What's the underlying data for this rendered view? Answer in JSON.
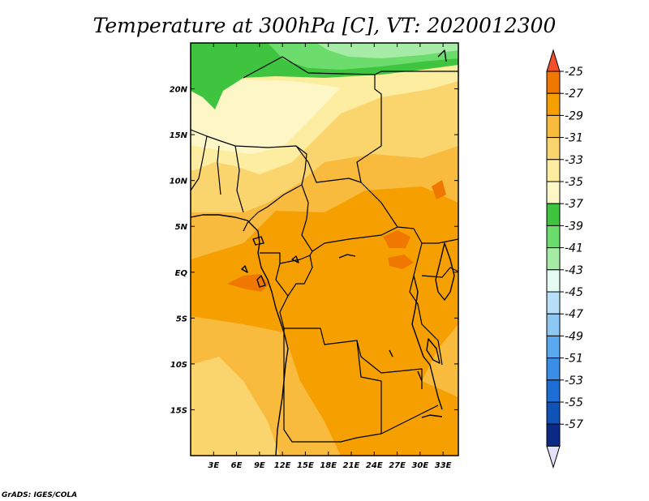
{
  "chart_data": {
    "type": "heatmap",
    "title": "Temperature at 300hPa [C], VT: 2020012300",
    "field": "Temperature at 300hPa",
    "units": "C",
    "valid_time": "2020012300",
    "x_ticks": [
      "3E",
      "6E",
      "9E",
      "12E",
      "15E",
      "18E",
      "21E",
      "24E",
      "27E",
      "30E",
      "33E"
    ],
    "x_tick_values": [
      3,
      6,
      9,
      12,
      15,
      18,
      21,
      24,
      27,
      30,
      33
    ],
    "y_ticks": [
      "20N",
      "15N",
      "10N",
      "5N",
      "EQ",
      "5S",
      "10S",
      "15S"
    ],
    "y_tick_values": [
      20,
      15,
      10,
      5,
      0,
      -5,
      -10,
      -15
    ],
    "xlim": [
      0,
      35
    ],
    "ylim": [
      -20,
      25
    ],
    "colorbar": {
      "levels": [
        -25,
        -27,
        -29,
        -31,
        -33,
        -35,
        -37,
        -39,
        -41,
        -43,
        -45,
        -47,
        -49,
        -51,
        -53,
        -55,
        -57
      ],
      "level_labels": [
        "-25",
        "-27",
        "-29",
        "-31",
        "-33",
        "-35",
        "-37",
        "-39",
        "-41",
        "-43",
        "-45",
        "-47",
        "-49",
        "-51",
        "-53",
        "-55",
        "-57"
      ],
      "colors": [
        "#f07800",
        "#f5a000",
        "#f8bb3e",
        "#fad56e",
        "#fdeda0",
        "#fdf7c8",
        "#3ec43e",
        "#6cdc6c",
        "#a6eba6",
        "#e3fbf3",
        "#b7dff8",
        "#8fc7f3",
        "#5aa8ee",
        "#3a8ee6",
        "#1e6ed8",
        "#0f52b8",
        "#0b2a86"
      ],
      "top_arrow_color": "#f0502a",
      "bottom_arrow_color": "#e4e2f7"
    },
    "grid": false
  },
  "credit": "GrADS: IGES/COLA"
}
